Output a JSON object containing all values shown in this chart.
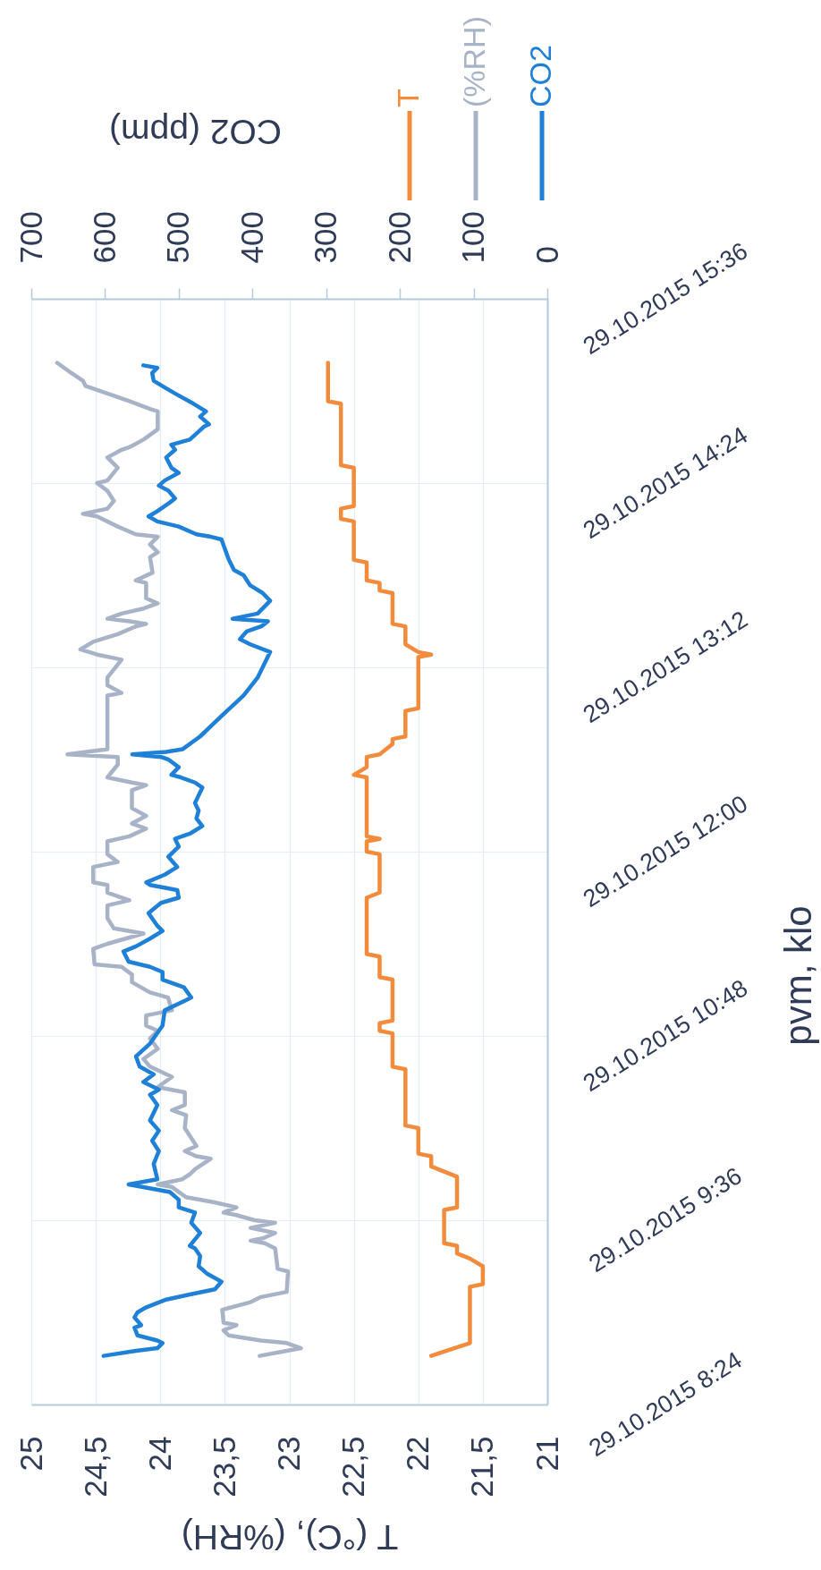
{
  "chart_data": {
    "type": "line",
    "orientation": "horizontal",
    "ylabel": "pvm, klo",
    "xlabel": "T (°C), (%RH)",
    "x2label": "CO2 (ppm)",
    "ylim": [
      "2015-10-29T08:24",
      "2015-10-29T15:36"
    ],
    "yticks": [
      {
        "value": "2015-10-29T08:24",
        "label": "29.10.2015 8:24"
      },
      {
        "value": "2015-10-29T09:36",
        "label": "29.10.2015 9:36"
      },
      {
        "value": "2015-10-29T10:48",
        "label": "29.10.2015 10:48"
      },
      {
        "value": "2015-10-29T12:00",
        "label": "29.10.2015 12:00"
      },
      {
        "value": "2015-10-29T13:12",
        "label": "29.10.2015 13:12"
      },
      {
        "value": "2015-10-29T14:24",
        "label": "29.10.2015 14:24"
      },
      {
        "value": "2015-10-29T15:36",
        "label": "29.10.2015 15:36"
      }
    ],
    "xlim": [
      25,
      21
    ],
    "xticks": [
      25,
      {
        "value": 24.5,
        "label": "24,5"
      },
      24,
      {
        "value": 23.5,
        "label": "23,5"
      },
      23,
      {
        "value": 22.5,
        "label": "22,5"
      },
      22,
      {
        "value": 21.5,
        "label": "21,5"
      },
      21
    ],
    "x2lim": [
      700,
      0
    ],
    "x2ticks": [
      700,
      600,
      500,
      400,
      300,
      200,
      100,
      0
    ],
    "grid": true,
    "legend": "top right",
    "series": [
      {
        "name": "T",
        "color": "#f28c3c",
        "x": [
          "2015-10-29T08:43",
          "2015-10-29T08:48",
          "2015-10-29T09:10",
          "2015-10-29T09:11",
          "2015-10-29T09:18",
          "2015-10-29T09:21",
          "2015-10-29T09:23",
          "2015-10-29T09:26",
          "2015-10-29T09:27",
          "2015-10-29T09:40",
          "2015-10-29T09:41",
          "2015-10-29T09:53",
          "2015-10-29T09:55",
          "2015-10-29T09:57",
          "2015-10-29T10:01",
          "2015-10-29T10:02",
          "2015-10-29T10:12",
          "2015-10-29T10:13",
          "2015-10-29T10:35",
          "2015-10-29T10:36",
          "2015-10-29T10:49",
          "2015-10-29T10:50",
          "2015-10-29T10:53",
          "2015-10-29T10:54",
          "2015-10-29T11:10",
          "2015-10-29T11:11",
          "2015-10-29T11:19",
          "2015-10-29T11:20",
          "2015-10-29T11:42",
          "2015-10-29T11:44",
          "2015-10-29T11:59",
          "2015-10-29T12:00",
          "2015-10-29T12:04",
          "2015-10-29T12:05",
          "2015-10-29T12:06",
          "2015-10-29T12:29",
          "2015-10-29T12:30",
          "2015-10-29T12:33",
          "2015-10-29T12:37",
          "2015-10-29T12:38",
          "2015-10-29T12:42",
          "2015-10-29T12:44",
          "2015-10-29T12:45",
          "2015-10-29T12:55",
          "2015-10-29T12:56",
          "2015-10-29T13:16",
          "2015-10-29T13:17",
          "2015-10-29T13:18",
          "2015-10-29T13:21",
          "2015-10-29T13:28",
          "2015-10-29T13:29",
          "2015-10-29T13:41",
          "2015-10-29T13:42",
          "2015-10-29T13:45",
          "2015-10-29T13:46",
          "2015-10-29T13:53",
          "2015-10-29T13:54",
          "2015-10-29T14:09",
          "2015-10-29T14:10",
          "2015-10-29T14:14",
          "2015-10-29T14:15",
          "2015-10-29T14:30",
          "2015-10-29T14:31",
          "2015-10-29T14:55",
          "2015-10-29T14:56",
          "2015-10-29T15:11"
        ],
        "values": [
          21.9,
          21.6,
          21.6,
          21.5,
          21.5,
          21.6,
          21.7,
          21.7,
          21.8,
          21.8,
          21.7,
          21.7,
          21.8,
          21.9,
          21.9,
          22.0,
          22.0,
          22.1,
          22.1,
          22.2,
          22.2,
          22.3,
          22.3,
          22.2,
          22.2,
          22.3,
          22.3,
          22.4,
          22.4,
          22.3,
          22.3,
          22.4,
          22.4,
          22.3,
          22.4,
          22.4,
          22.5,
          22.4,
          22.4,
          22.3,
          22.2,
          22.2,
          22.1,
          22.1,
          22.0,
          22.0,
          21.9,
          22.0,
          22.1,
          22.1,
          22.2,
          22.2,
          22.3,
          22.3,
          22.4,
          22.4,
          22.5,
          22.5,
          22.6,
          22.6,
          22.5,
          22.5,
          22.6,
          22.6,
          22.7,
          22.7
        ]
      },
      {
        "name": "(%RH)",
        "color": "#a8b3c7",
        "x": [
          "2015-10-29T08:43",
          "2015-10-29T08:45",
          "2015-10-29T08:46",
          "2015-10-29T08:48",
          "2015-10-29T08:49",
          "2015-10-29T08:51",
          "2015-10-29T08:53",
          "2015-10-29T08:55",
          "2015-10-29T08:56",
          "2015-10-29T09:01",
          "2015-10-29T09:04",
          "2015-10-29T09:06",
          "2015-10-29T09:08",
          "2015-10-29T09:16",
          "2015-10-29T09:17",
          "2015-10-29T09:25",
          "2015-10-29T09:27",
          "2015-10-29T09:28",
          "2015-10-29T09:29",
          "2015-10-29T09:31",
          "2015-10-29T09:33",
          "2015-10-29T09:35",
          "2015-10-29T09:36",
          "2015-10-29T09:38",
          "2015-10-29T09:39",
          "2015-10-29T09:41",
          "2015-10-29T09:43",
          "2015-10-29T09:45",
          "2015-10-29T09:49",
          "2015-10-29T09:50",
          "2015-10-29T09:52",
          "2015-10-29T09:54",
          "2015-10-29T09:56",
          "2015-10-29T10:00",
          "2015-10-29T10:01",
          "2015-10-29T10:03",
          "2015-10-29T10:05",
          "2015-10-29T10:12",
          "2015-10-29T10:17",
          "2015-10-29T10:19",
          "2015-10-29T10:21",
          "2015-10-29T10:26",
          "2015-10-29T10:28",
          "2015-10-29T10:32",
          "2015-10-29T10:36",
          "2015-10-29T10:39",
          "2015-10-29T10:43",
          "2015-10-29T10:47",
          "2015-10-29T10:50",
          "2015-10-29T10:52",
          "2015-10-29T10:56",
          "2015-10-29T10:58",
          "2015-10-29T11:03",
          "2015-10-29T11:05",
          "2015-10-29T11:09",
          "2015-10-29T11:12",
          "2015-10-29T11:15",
          "2015-10-29T11:16",
          "2015-10-29T11:22",
          "2015-10-29T11:24",
          "2015-10-29T11:26",
          "2015-10-29T11:28",
          "2015-10-29T11:30",
          "2015-10-29T11:34",
          "2015-10-29T11:39",
          "2015-10-29T11:41",
          "2015-10-29T11:44",
          "2015-10-29T11:47",
          "2015-10-29T11:48",
          "2015-10-29T11:54",
          "2015-10-29T11:56",
          "2015-10-29T11:59",
          "2015-10-29T12:04",
          "2015-10-29T12:06",
          "2015-10-29T12:09",
          "2015-10-29T12:11",
          "2015-10-29T12:14",
          "2015-10-29T12:17",
          "2015-10-29T12:24",
          "2015-10-29T12:26",
          "2015-10-29T12:27",
          "2015-10-29T12:29",
          "2015-10-29T12:34",
          "2015-10-29T12:37",
          "2015-10-29T12:38",
          "2015-10-29T12:40",
          "2015-10-29T13:01",
          "2015-10-29T13:02",
          "2015-10-29T13:05",
          "2015-10-29T13:08",
          "2015-10-29T13:15",
          "2015-10-29T13:17",
          "2015-10-29T13:19",
          "2015-10-29T13:22",
          "2015-10-29T13:25",
          "2015-10-29T13:28",
          "2015-10-29T13:29",
          "2015-10-29T13:30",
          "2015-10-29T13:31",
          "2015-10-29T13:33",
          "2015-10-29T13:35",
          "2015-10-29T13:37",
          "2015-10-29T13:39",
          "2015-10-29T13:45",
          "2015-10-29T13:46",
          "2015-10-29T13:49",
          "2015-10-29T13:55",
          "2015-10-29T13:57",
          "2015-10-29T14:00",
          "2015-10-29T14:03",
          "2015-10-29T14:04",
          "2015-10-29T14:07",
          "2015-10-29T14:11",
          "2015-10-29T14:12",
          "2015-10-29T14:14",
          "2015-10-29T14:17",
          "2015-10-29T14:21",
          "2015-10-29T14:24",
          "2015-10-29T14:25",
          "2015-10-29T14:30",
          "2015-10-29T14:34",
          "2015-10-29T14:37",
          "2015-10-29T14:38",
          "2015-10-29T14:41",
          "2015-10-29T14:45",
          "2015-10-29T14:52",
          "2015-10-29T14:53",
          "2015-10-29T14:56",
          "2015-10-29T14:59",
          "2015-10-29T15:02",
          "2015-10-29T15:04",
          "2015-10-29T15:07",
          "2015-10-29T15:11"
        ],
        "values": [
          23.23,
          23.02,
          22.91,
          23.02,
          23.22,
          23.47,
          23.51,
          23.41,
          23.51,
          23.52,
          23.3,
          23.22,
          23.02,
          23.01,
          23.09,
          23.11,
          23.19,
          23.3,
          23.2,
          23.11,
          23.3,
          23.11,
          23.27,
          23.41,
          23.51,
          23.41,
          23.58,
          23.8,
          23.91,
          24.02,
          23.83,
          23.77,
          23.73,
          23.61,
          23.72,
          23.81,
          23.72,
          23.81,
          23.8,
          23.91,
          23.81,
          23.81,
          24.02,
          23.91,
          24.08,
          24.13,
          24.02,
          24.08,
          24.02,
          24.11,
          24.11,
          23.91,
          23.94,
          24.08,
          24.22,
          24.22,
          24.3,
          24.51,
          24.52,
          24.41,
          24.27,
          24.13,
          24.36,
          24.41,
          24.41,
          24.24,
          24.41,
          24.41,
          24.52,
          24.52,
          24.33,
          24.41,
          24.41,
          24.24,
          24.11,
          24.22,
          24.11,
          24.22,
          24.22,
          24.11,
          24.22,
          24.41,
          24.33,
          24.33,
          24.72,
          24.41,
          24.41,
          24.3,
          24.41,
          24.41,
          24.3,
          24.49,
          24.62,
          24.52,
          24.33,
          24.19,
          24.11,
          24.24,
          24.41,
          24.3,
          24.13,
          24.02,
          24.11,
          24.11,
          24.19,
          24.06,
          24.08,
          24.02,
          24.08,
          24.02,
          24.19,
          24.33,
          24.49,
          24.6,
          24.41,
          24.36,
          24.41,
          24.49,
          24.41,
          24.33,
          24.41,
          24.3,
          24.24,
          24.13,
          24.02,
          24.02,
          24.08,
          24.24,
          24.41,
          24.58,
          24.6,
          24.69,
          24.8
        ]
      },
      {
        "name": "CO2",
        "color": "#1f80d8",
        "axis": "x2",
        "x": [
          "2015-10-29T08:43",
          "2015-10-29T08:45",
          "2015-10-29T08:46",
          "2015-10-29T08:48",
          "2015-10-29T08:49",
          "2015-10-29T08:51",
          "2015-10-29T08:54",
          "2015-10-29T08:55",
          "2015-10-29T08:58",
          "2015-10-29T09:00",
          "2015-10-29T09:02",
          "2015-10-29T09:05",
          "2015-10-29T09:07",
          "2015-10-29T09:09",
          "2015-10-29T09:12",
          "2015-10-29T09:15",
          "2015-10-29T09:18",
          "2015-10-29T09:22",
          "2015-10-29T09:25",
          "2015-10-29T09:26",
          "2015-10-29T09:31",
          "2015-10-29T09:35",
          "2015-10-29T09:39",
          "2015-10-29T09:41",
          "2015-10-29T09:44",
          "2015-10-29T09:47",
          "2015-10-29T09:50",
          "2015-10-29T09:52",
          "2015-10-29T09:58",
          "2015-10-29T10:03",
          "2015-10-29T10:07",
          "2015-10-29T10:11",
          "2015-10-29T10:15",
          "2015-10-29T10:21",
          "2015-10-29T10:25",
          "2015-10-29T10:27",
          "2015-10-29T10:30",
          "2015-10-29T10:33",
          "2015-10-29T10:36",
          "2015-10-29T10:40",
          "2015-10-29T10:45",
          "2015-10-29T10:52",
          "2015-10-29T10:58",
          "2015-10-29T11:02",
          "2015-10-29T11:03",
          "2015-10-29T11:07",
          "2015-10-29T11:10",
          "2015-10-29T11:13",
          "2015-10-29T11:15",
          "2015-10-29T11:17",
          "2015-10-29T11:21",
          "2015-10-29T11:23",
          "2015-10-29T11:26",
          "2015-10-29T11:29",
          "2015-10-29T11:31",
          "2015-10-29T11:36",
          "2015-10-29T11:40",
          "2015-10-29T11:42",
          "2015-10-29T11:45",
          "2015-10-29T11:47",
          "2015-10-29T11:48",
          "2015-10-29T11:51",
          "2015-10-29T11:54",
          "2015-10-29T11:58",
          "2015-10-29T12:02",
          "2015-10-29T12:05",
          "2015-10-29T12:07",
          "2015-10-29T12:10",
          "2015-10-29T12:13",
          "2015-10-29T12:16",
          "2015-10-29T12:19",
          "2015-10-29T12:25",
          "2015-10-29T12:27",
          "2015-10-29T12:29",
          "2015-10-29T12:30",
          "2015-10-29T12:33",
          "2015-10-29T12:36",
          "2015-10-29T12:37",
          "2015-10-29T12:38",
          "2015-10-29T12:39",
          "2015-10-29T12:40",
          "2015-10-29T12:45",
          "2015-10-29T12:53",
          "2015-10-29T13:01",
          "2015-10-29T13:08",
          "2015-10-29T13:18",
          "2015-10-29T13:21",
          "2015-10-29T13:23",
          "2015-10-29T13:26",
          "2015-10-29T13:28",
          "2015-10-29T13:30",
          "2015-10-29T13:31",
          "2015-10-29T13:33",
          "2015-10-29T13:38",
          "2015-10-29T13:41",
          "2015-10-29T13:44",
          "2015-10-29T13:48",
          "2015-10-29T13:50",
          "2015-10-29T13:54",
          "2015-10-29T13:58",
          "2015-10-29T14:02",
          "2015-10-29T14:03",
          "2015-10-29T14:04",
          "2015-10-29T14:07",
          "2015-10-29T14:09",
          "2015-10-29T14:11",
          "2015-10-29T14:13",
          "2015-10-29T14:16",
          "2015-10-29T14:18",
          "2015-10-29T14:21",
          "2015-10-29T14:23",
          "2015-10-29T14:25",
          "2015-10-29T14:28",
          "2015-10-29T14:30",
          "2015-10-29T14:34",
          "2015-10-29T14:37",
          "2015-10-29T14:39",
          "2015-10-29T14:41",
          "2015-10-29T14:46",
          "2015-10-29T14:47",
          "2015-10-29T14:50",
          "2015-10-29T14:52",
          "2015-10-29T14:55",
          "2015-10-29T14:59",
          "2015-10-29T15:01",
          "2015-10-29T15:04",
          "2015-10-29T15:07",
          "2015-10-29T15:09",
          "2015-10-29T15:10"
        ],
        "values": [
          602,
          558,
          529,
          522,
          529,
          556,
          560,
          551,
          560,
          556,
          544,
          517,
          485,
          451,
          442,
          461,
          473,
          471,
          478,
          485,
          471,
          483,
          478,
          500,
          500,
          512,
          568,
          529,
          534,
          527,
          536,
          527,
          539,
          529,
          539,
          527,
          548,
          534,
          553,
          558,
          539,
          522,
          519,
          490,
          483,
          493,
          522,
          522,
          539,
          568,
          575,
          558,
          539,
          522,
          529,
          541,
          524,
          500,
          502,
          539,
          544,
          519,
          502,
          514,
          500,
          505,
          485,
          468,
          476,
          473,
          478,
          468,
          478,
          497,
          510,
          500,
          514,
          524,
          563,
          517,
          495,
          471,
          442,
          412,
          393,
          376,
          403,
          417,
          408,
          388,
          379,
          427,
          393,
          376,
          386,
          403,
          412,
          425,
          432,
          437,
          442,
          456,
          476,
          500,
          529,
          541,
          529,
          514,
          505,
          514,
          527,
          519,
          500,
          510,
          517,
          505,
          510,
          485,
          466,
          459,
          471,
          463,
          480,
          505,
          517,
          534,
          536,
          529,
          548
        ]
      }
    ]
  }
}
